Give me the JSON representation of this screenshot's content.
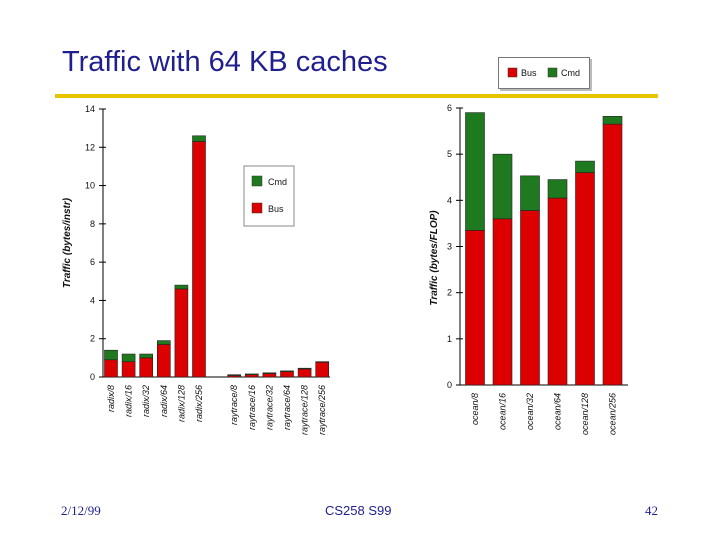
{
  "slide": {
    "title": "Traffic with 64 KB caches",
    "footer_date": "2/12/99",
    "footer_course": "CS258 S99",
    "footer_page": "42"
  },
  "colors": {
    "bus": "#dd0000",
    "cmd": "#1f7a1f",
    "accent": "#e8c400",
    "title": "#1f1f8f"
  },
  "chart_data": [
    {
      "type": "bar",
      "stacked": true,
      "ylabel": "Traffic (bytes/instr)",
      "ylim": [
        0,
        14
      ],
      "yticks": [
        "0",
        "2",
        "4",
        "6",
        "8",
        "10",
        "12",
        "14"
      ],
      "legend": [
        "Cmd",
        "Bus"
      ],
      "legend_position": "right",
      "categories": [
        "radix/8",
        "radix/16",
        "radix/32",
        "radix/64",
        "radix/128",
        "radix/256",
        "raytrace/8",
        "raytrace/16",
        "raytrace/32",
        "raytrace/64",
        "raytrace/128",
        "raytrace/256"
      ],
      "group_break_after": 5,
      "series": [
        {
          "name": "Bus",
          "values": [
            0.9,
            0.8,
            1.0,
            1.7,
            4.6,
            12.3,
            0.08,
            0.12,
            0.18,
            0.28,
            0.42,
            0.78
          ]
        },
        {
          "name": "Cmd",
          "values": [
            0.5,
            0.4,
            0.2,
            0.2,
            0.2,
            0.3,
            0.04,
            0.04,
            0.04,
            0.04,
            0.04,
            0.02
          ]
        }
      ]
    },
    {
      "type": "bar",
      "stacked": true,
      "ylabel": "Traffic (bytes/FLOP)",
      "ylim": [
        0,
        6
      ],
      "yticks": [
        "0",
        "1",
        "2",
        "3",
        "4",
        "5",
        "6"
      ],
      "legend": [
        "Bus",
        "Cmd"
      ],
      "legend_position": "top",
      "categories": [
        "ocean/8",
        "ocean/16",
        "ocean/32",
        "ocean/64",
        "ocean/128",
        "ocean/256"
      ],
      "series": [
        {
          "name": "Bus",
          "values": [
            3.35,
            3.6,
            3.78,
            4.05,
            4.6,
            5.65
          ]
        },
        {
          "name": "Cmd",
          "values": [
            2.55,
            1.4,
            0.75,
            0.4,
            0.25,
            0.17
          ]
        }
      ]
    }
  ]
}
